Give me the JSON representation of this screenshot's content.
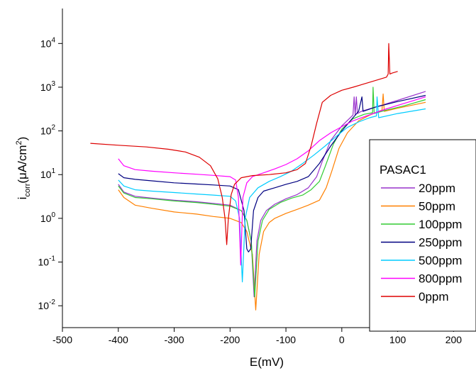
{
  "chart_data": {
    "type": "line",
    "xlabel": "E(mV)",
    "ylabel_main": "i",
    "ylabel_sub": "corr",
    "ylabel_rest": "(μA/cm",
    "ylabel_sup": "2",
    "ylabel_end": ")",
    "xlim": [
      -500,
      230
    ],
    "ylim_log10": [
      -2.5,
      4.8
    ],
    "y_scale": "log",
    "grid": false,
    "legend_placement": "bottom-right",
    "x_ticks": [
      {
        "value": -500,
        "label": "-500"
      },
      {
        "value": -400,
        "label": "-400"
      },
      {
        "value": -300,
        "label": "-300"
      },
      {
        "value": -200,
        "label": "-200"
      },
      {
        "value": -100,
        "label": "-100"
      },
      {
        "value": 0,
        "label": "0"
      },
      {
        "value": 100,
        "label": "100"
      },
      {
        "value": 200,
        "label": "200"
      }
    ],
    "y_ticks": [
      {
        "exp": -2,
        "base": "10",
        "sup": "-2"
      },
      {
        "exp": -1,
        "base": "10",
        "sup": "-1"
      },
      {
        "exp": 0,
        "base": "10",
        "sup": "0"
      },
      {
        "exp": 1,
        "base": "10",
        "sup": "1"
      },
      {
        "exp": 2,
        "base": "10",
        "sup": "2"
      },
      {
        "exp": 3,
        "base": "10",
        "sup": "3"
      },
      {
        "exp": 4,
        "base": "10",
        "sup": "4"
      }
    ],
    "legend_title": "PASAC1",
    "series": [
      {
        "name": "20ppm",
        "color": "#9933cc",
        "points": [
          [
            -400,
            6.0
          ],
          [
            -390,
            4.0
          ],
          [
            -370,
            3.2
          ],
          [
            -340,
            2.9
          ],
          [
            -300,
            2.6
          ],
          [
            -260,
            2.4
          ],
          [
            -230,
            2.2
          ],
          [
            -200,
            2.0
          ],
          [
            -180,
            1.5
          ],
          [
            -170,
            0.9
          ],
          [
            -162,
            0.3
          ],
          [
            -157,
            0.016
          ],
          [
            -152,
            0.3
          ],
          [
            -145,
            0.9
          ],
          [
            -135,
            1.5
          ],
          [
            -120,
            2.1
          ],
          [
            -100,
            2.8
          ],
          [
            -80,
            3.5
          ],
          [
            -60,
            5.0
          ],
          [
            -45,
            9.0
          ],
          [
            -35,
            20.0
          ],
          [
            -20,
            60.0
          ],
          [
            0,
            130.0
          ],
          [
            20,
            230.0
          ],
          [
            22,
            600.0
          ],
          [
            24,
            230.0
          ],
          [
            26,
            600.0
          ],
          [
            28,
            250.0
          ],
          [
            35,
            280.0
          ],
          [
            60,
            350.0
          ],
          [
            100,
            500.0
          ],
          [
            150,
            800.0
          ]
        ]
      },
      {
        "name": "50ppm",
        "color": "#ff8000",
        "points": [
          [
            -400,
            4.5
          ],
          [
            -390,
            3.0
          ],
          [
            -370,
            2.0
          ],
          [
            -340,
            1.7
          ],
          [
            -300,
            1.4
          ],
          [
            -260,
            1.25
          ],
          [
            -230,
            1.1
          ],
          [
            -200,
            1.0
          ],
          [
            -180,
            0.8
          ],
          [
            -170,
            0.5
          ],
          [
            -160,
            0.15
          ],
          [
            -154,
            0.008
          ],
          [
            -148,
            0.15
          ],
          [
            -140,
            0.5
          ],
          [
            -130,
            0.8
          ],
          [
            -120,
            1.0
          ],
          [
            -100,
            1.3
          ],
          [
            -80,
            1.6
          ],
          [
            -60,
            2.0
          ],
          [
            -40,
            2.6
          ],
          [
            -28,
            5.0
          ],
          [
            -18,
            12.0
          ],
          [
            -5,
            40.0
          ],
          [
            10,
            90.0
          ],
          [
            30,
            170.0
          ],
          [
            50,
            230.0
          ],
          [
            72,
            300.0
          ],
          [
            74,
            700.0
          ],
          [
            76,
            280.0
          ],
          [
            100,
            330.0
          ],
          [
            150,
            450.0
          ]
        ]
      },
      {
        "name": "100ppm",
        "color": "#33cc33",
        "points": [
          [
            -400,
            5.5
          ],
          [
            -390,
            3.8
          ],
          [
            -370,
            3.0
          ],
          [
            -340,
            2.8
          ],
          [
            -300,
            2.5
          ],
          [
            -260,
            2.3
          ],
          [
            -230,
            2.1
          ],
          [
            -200,
            1.9
          ],
          [
            -180,
            1.5
          ],
          [
            -170,
            0.9
          ],
          [
            -162,
            0.3
          ],
          [
            -156,
            0.016
          ],
          [
            -150,
            0.3
          ],
          [
            -142,
            0.9
          ],
          [
            -130,
            1.6
          ],
          [
            -110,
            2.3
          ],
          [
            -90,
            2.9
          ],
          [
            -70,
            3.4
          ],
          [
            -55,
            4.5
          ],
          [
            -40,
            7.0
          ],
          [
            -30,
            15.0
          ],
          [
            -15,
            50.0
          ],
          [
            0,
            110.0
          ],
          [
            20,
            190.0
          ],
          [
            40,
            240.0
          ],
          [
            55,
            260.0
          ],
          [
            56,
            1000.0
          ],
          [
            58,
            250.0
          ],
          [
            80,
            300.0
          ],
          [
            110,
            370.0
          ],
          [
            150,
            520.0
          ]
        ]
      },
      {
        "name": "250ppm",
        "color": "#000080",
        "points": [
          [
            -400,
            10.5
          ],
          [
            -390,
            8.5
          ],
          [
            -370,
            7.8
          ],
          [
            -340,
            7.2
          ],
          [
            -300,
            6.5
          ],
          [
            -260,
            6.1
          ],
          [
            -230,
            5.8
          ],
          [
            -200,
            5.5
          ],
          [
            -185,
            4.5
          ],
          [
            -175,
            1.5
          ],
          [
            -170,
            0.2
          ],
          [
            -167,
            0.17
          ],
          [
            -163,
            0.2
          ],
          [
            -158,
            1.5
          ],
          [
            -150,
            3.0
          ],
          [
            -140,
            4.2
          ],
          [
            -120,
            5.0
          ],
          [
            -100,
            6.0
          ],
          [
            -80,
            7.0
          ],
          [
            -60,
            9.0
          ],
          [
            -40,
            18.0
          ],
          [
            -20,
            45.0
          ],
          [
            0,
            100.0
          ],
          [
            20,
            200.0
          ],
          [
            30,
            280.0
          ],
          [
            36,
            600.0
          ],
          [
            38,
            280.0
          ],
          [
            60,
            350.0
          ],
          [
            100,
            470.0
          ],
          [
            150,
            650.0
          ]
        ]
      },
      {
        "name": "500ppm",
        "color": "#00ccff",
        "points": [
          [
            -400,
            7.5
          ],
          [
            -390,
            5.5
          ],
          [
            -370,
            4.5
          ],
          [
            -340,
            4.2
          ],
          [
            -300,
            3.9
          ],
          [
            -260,
            3.6
          ],
          [
            -230,
            3.4
          ],
          [
            -200,
            3.2
          ],
          [
            -190,
            2.5
          ],
          [
            -183,
            1.0
          ],
          [
            -178,
            0.035
          ],
          [
            -173,
            1.0
          ],
          [
            -165,
            3.0
          ],
          [
            -150,
            5.0
          ],
          [
            -130,
            7.0
          ],
          [
            -110,
            9.0
          ],
          [
            -90,
            12.0
          ],
          [
            -70,
            18.0
          ],
          [
            -50,
            28.0
          ],
          [
            -30,
            45.0
          ],
          [
            -10,
            75.0
          ],
          [
            10,
            120.0
          ],
          [
            30,
            160.0
          ],
          [
            50,
            200.0
          ],
          [
            62,
            220.0
          ],
          [
            63,
            600.0
          ],
          [
            66,
            200.0
          ],
          [
            100,
            250.0
          ],
          [
            150,
            320.0
          ]
        ]
      },
      {
        "name": "800ppm",
        "color": "#ff00ff",
        "points": [
          [
            -400,
            23.0
          ],
          [
            -390,
            16.0
          ],
          [
            -370,
            13.0
          ],
          [
            -340,
            12.0
          ],
          [
            -300,
            11.0
          ],
          [
            -260,
            10.2
          ],
          [
            -230,
            9.6
          ],
          [
            -200,
            9.0
          ],
          [
            -190,
            7.5
          ],
          [
            -185,
            3.0
          ],
          [
            -181,
            0.085
          ],
          [
            -177,
            3.0
          ],
          [
            -170,
            6.5
          ],
          [
            -160,
            9.0
          ],
          [
            -140,
            11.0
          ],
          [
            -120,
            13.5
          ],
          [
            -100,
            17.0
          ],
          [
            -80,
            23.0
          ],
          [
            -60,
            35.0
          ],
          [
            -40,
            60.0
          ],
          [
            -20,
            90.0
          ],
          [
            0,
            125.0
          ],
          [
            20,
            170.0
          ],
          [
            40,
            210.0
          ],
          [
            60,
            260.0
          ],
          [
            80,
            320.0
          ],
          [
            110,
            420.0
          ],
          [
            150,
            600.0
          ]
        ]
      },
      {
        "name": "0ppm",
        "color": "#dd0000",
        "points": [
          [
            -450,
            52.0
          ],
          [
            -400,
            47.0
          ],
          [
            -350,
            43.0
          ],
          [
            -310,
            38.0
          ],
          [
            -280,
            33.0
          ],
          [
            -255,
            25.0
          ],
          [
            -235,
            16.0
          ],
          [
            -222,
            8.0
          ],
          [
            -214,
            3.0
          ],
          [
            -209,
            1.0
          ],
          [
            -206,
            0.25
          ],
          [
            -203,
            1.0
          ],
          [
            -198,
            3.5
          ],
          [
            -192,
            6.0
          ],
          [
            -180,
            8.5
          ],
          [
            -160,
            9.5
          ],
          [
            -130,
            10.0
          ],
          [
            -100,
            11.0
          ],
          [
            -80,
            13.0
          ],
          [
            -65,
            18.0
          ],
          [
            -55,
            45.0
          ],
          [
            -45,
            150.0
          ],
          [
            -35,
            450.0
          ],
          [
            -20,
            650.0
          ],
          [
            0,
            850.0
          ],
          [
            20,
            1000.0
          ],
          [
            50,
            1300.0
          ],
          [
            80,
            1700.0
          ],
          [
            83,
            2000.0
          ],
          [
            84,
            10000.0
          ],
          [
            86,
            2000.0
          ],
          [
            90,
            2100.0
          ],
          [
            100,
            2300.0
          ]
        ]
      }
    ]
  }
}
